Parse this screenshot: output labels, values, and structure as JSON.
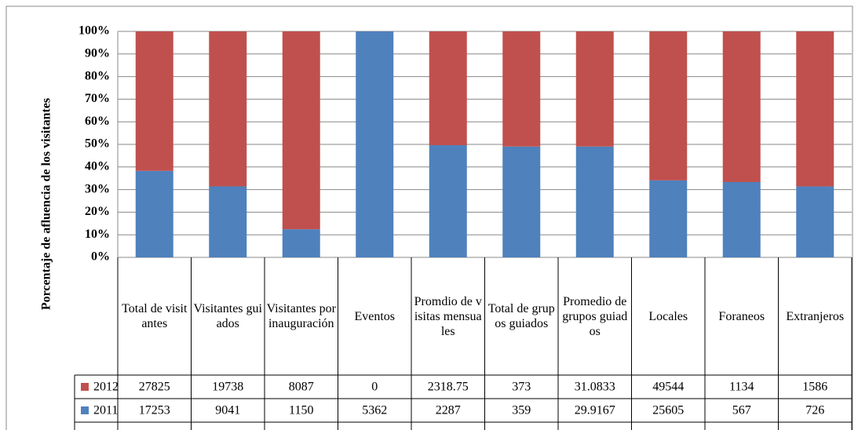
{
  "chart_data": {
    "type": "stacked_percent_bar",
    "y_label": "Porcentaje de afluencia de los visitantes",
    "categories": [
      "Total de visitantes",
      "Visitantes guiados",
      "Visitantes por inauguración",
      "Eventos",
      "Promdio de visitas mensuales",
      "Total de grupos guiados",
      "Promedio de grupos guiados",
      "Locales",
      "Foraneos",
      "Extranjeros"
    ],
    "series": [
      {
        "name": "2012",
        "color": "#c0504d",
        "values": [
          27825,
          19738,
          8087,
          0,
          2318.75,
          373,
          31.0833,
          49544,
          1134,
          1586
        ]
      },
      {
        "name": "2011",
        "color": "#4f81bd",
        "values": [
          17253,
          9041,
          1150,
          5362,
          2287,
          359,
          29.9167,
          25605,
          567,
          726
        ]
      }
    ],
    "ylim": [
      0,
      100
    ],
    "yticks": [
      {
        "value": 0,
        "label": "0%"
      },
      {
        "value": 10,
        "label": "10%"
      },
      {
        "value": 20,
        "label": "20%"
      },
      {
        "value": 30,
        "label": "30%"
      },
      {
        "value": 40,
        "label": "40%"
      },
      {
        "value": 50,
        "label": "50%"
      },
      {
        "value": 60,
        "label": "60%"
      },
      {
        "value": 70,
        "label": "70%"
      },
      {
        "value": 80,
        "label": "80%"
      },
      {
        "value": 90,
        "label": "90%"
      },
      {
        "value": 100,
        "label": "100%"
      }
    ],
    "grid": true
  }
}
